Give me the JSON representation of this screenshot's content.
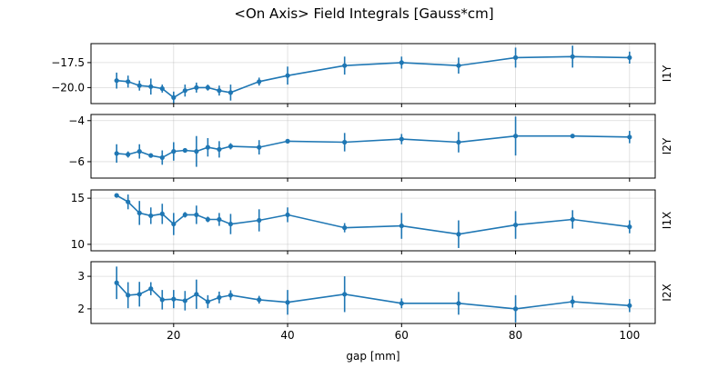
{
  "title": "<On Axis> Field Integrals [Gauss*cm]",
  "xlabel": "gap [mm]",
  "colors": {
    "series": "#1f77b4"
  },
  "x_ticks": [
    20,
    40,
    60,
    80,
    100
  ],
  "x_range": [
    5.5,
    104.5
  ],
  "chart_data": [
    {
      "type": "line",
      "panel_label": "I1Y",
      "ylim": [
        -21.6,
        -15.6
      ],
      "yticks": [
        -17.5,
        -20.0
      ],
      "ytick_labels": [
        "−17.5",
        "−20.0"
      ],
      "grid": true,
      "x": [
        10,
        12,
        14,
        16,
        18,
        20,
        22,
        24,
        26,
        28,
        30,
        35,
        40,
        50,
        60,
        70,
        80,
        90,
        100
      ],
      "y": [
        -19.3,
        -19.4,
        -19.8,
        -19.9,
        -20.1,
        -21.0,
        -20.3,
        -20.0,
        -20.0,
        -20.3,
        -20.5,
        -19.4,
        -18.8,
        -17.8,
        -17.5,
        -17.8,
        -17.0,
        -16.9,
        -17.0
      ],
      "yerr": [
        0.8,
        0.6,
        0.5,
        0.8,
        0.4,
        0.6,
        0.6,
        0.5,
        0.3,
        0.5,
        0.8,
        0.4,
        0.9,
        0.9,
        0.6,
        0.8,
        1.0,
        1.1,
        0.6
      ]
    },
    {
      "type": "line",
      "panel_label": "I2Y",
      "ylim": [
        -6.8,
        -3.7
      ],
      "yticks": [
        -4,
        -6
      ],
      "ytick_labels": [
        "−4",
        "−6"
      ],
      "grid": true,
      "x": [
        10,
        12,
        14,
        16,
        18,
        20,
        22,
        24,
        26,
        28,
        30,
        35,
        40,
        50,
        60,
        70,
        80,
        90,
        100
      ],
      "y": [
        -5.6,
        -5.65,
        -5.5,
        -5.7,
        -5.8,
        -5.5,
        -5.45,
        -5.5,
        -5.3,
        -5.4,
        -5.25,
        -5.3,
        -5.0,
        -5.05,
        -4.9,
        -5.05,
        -4.75,
        -4.75,
        -4.8
      ],
      "yerr": [
        0.45,
        0.15,
        0.35,
        0.1,
        0.35,
        0.45,
        0.1,
        0.75,
        0.45,
        0.4,
        0.15,
        0.35,
        0.1,
        0.45,
        0.25,
        0.5,
        0.95,
        0.1,
        0.3
      ]
    },
    {
      "type": "line",
      "panel_label": "I1X",
      "ylim": [
        9.3,
        15.9
      ],
      "yticks": [
        15,
        10
      ],
      "ytick_labels": [
        "15",
        "10"
      ],
      "grid": true,
      "x": [
        10,
        12,
        14,
        16,
        18,
        20,
        22,
        24,
        26,
        28,
        30,
        35,
        40,
        50,
        60,
        70,
        80,
        90,
        100
      ],
      "y": [
        15.3,
        14.6,
        13.4,
        13.1,
        13.3,
        12.2,
        13.2,
        13.2,
        12.7,
        12.7,
        12.2,
        12.6,
        13.2,
        11.8,
        12.0,
        11.1,
        12.1,
        12.7,
        11.9
      ],
      "yerr": [
        0.2,
        0.8,
        1.3,
        0.9,
        1.1,
        1.2,
        0.3,
        1.0,
        0.3,
        0.7,
        1.1,
        1.2,
        0.8,
        0.5,
        1.4,
        1.5,
        1.5,
        1.0,
        0.7
      ]
    },
    {
      "type": "line",
      "panel_label": "I2X",
      "ylim": [
        1.55,
        3.45
      ],
      "yticks": [
        3,
        2
      ],
      "ytick_labels": [
        "3",
        "2"
      ],
      "grid": true,
      "x": [
        10,
        12,
        14,
        16,
        18,
        20,
        22,
        24,
        26,
        28,
        30,
        35,
        40,
        50,
        60,
        70,
        80,
        90,
        100
      ],
      "y": [
        2.8,
        2.42,
        2.45,
        2.62,
        2.28,
        2.3,
        2.25,
        2.45,
        2.22,
        2.35,
        2.42,
        2.28,
        2.2,
        2.45,
        2.17,
        2.17,
        2.0,
        2.22,
        2.1
      ],
      "yerr": [
        0.5,
        0.4,
        0.38,
        0.2,
        0.3,
        0.28,
        0.3,
        0.45,
        0.2,
        0.18,
        0.15,
        0.12,
        0.38,
        0.55,
        0.15,
        0.35,
        0.42,
        0.18,
        0.2
      ]
    }
  ]
}
